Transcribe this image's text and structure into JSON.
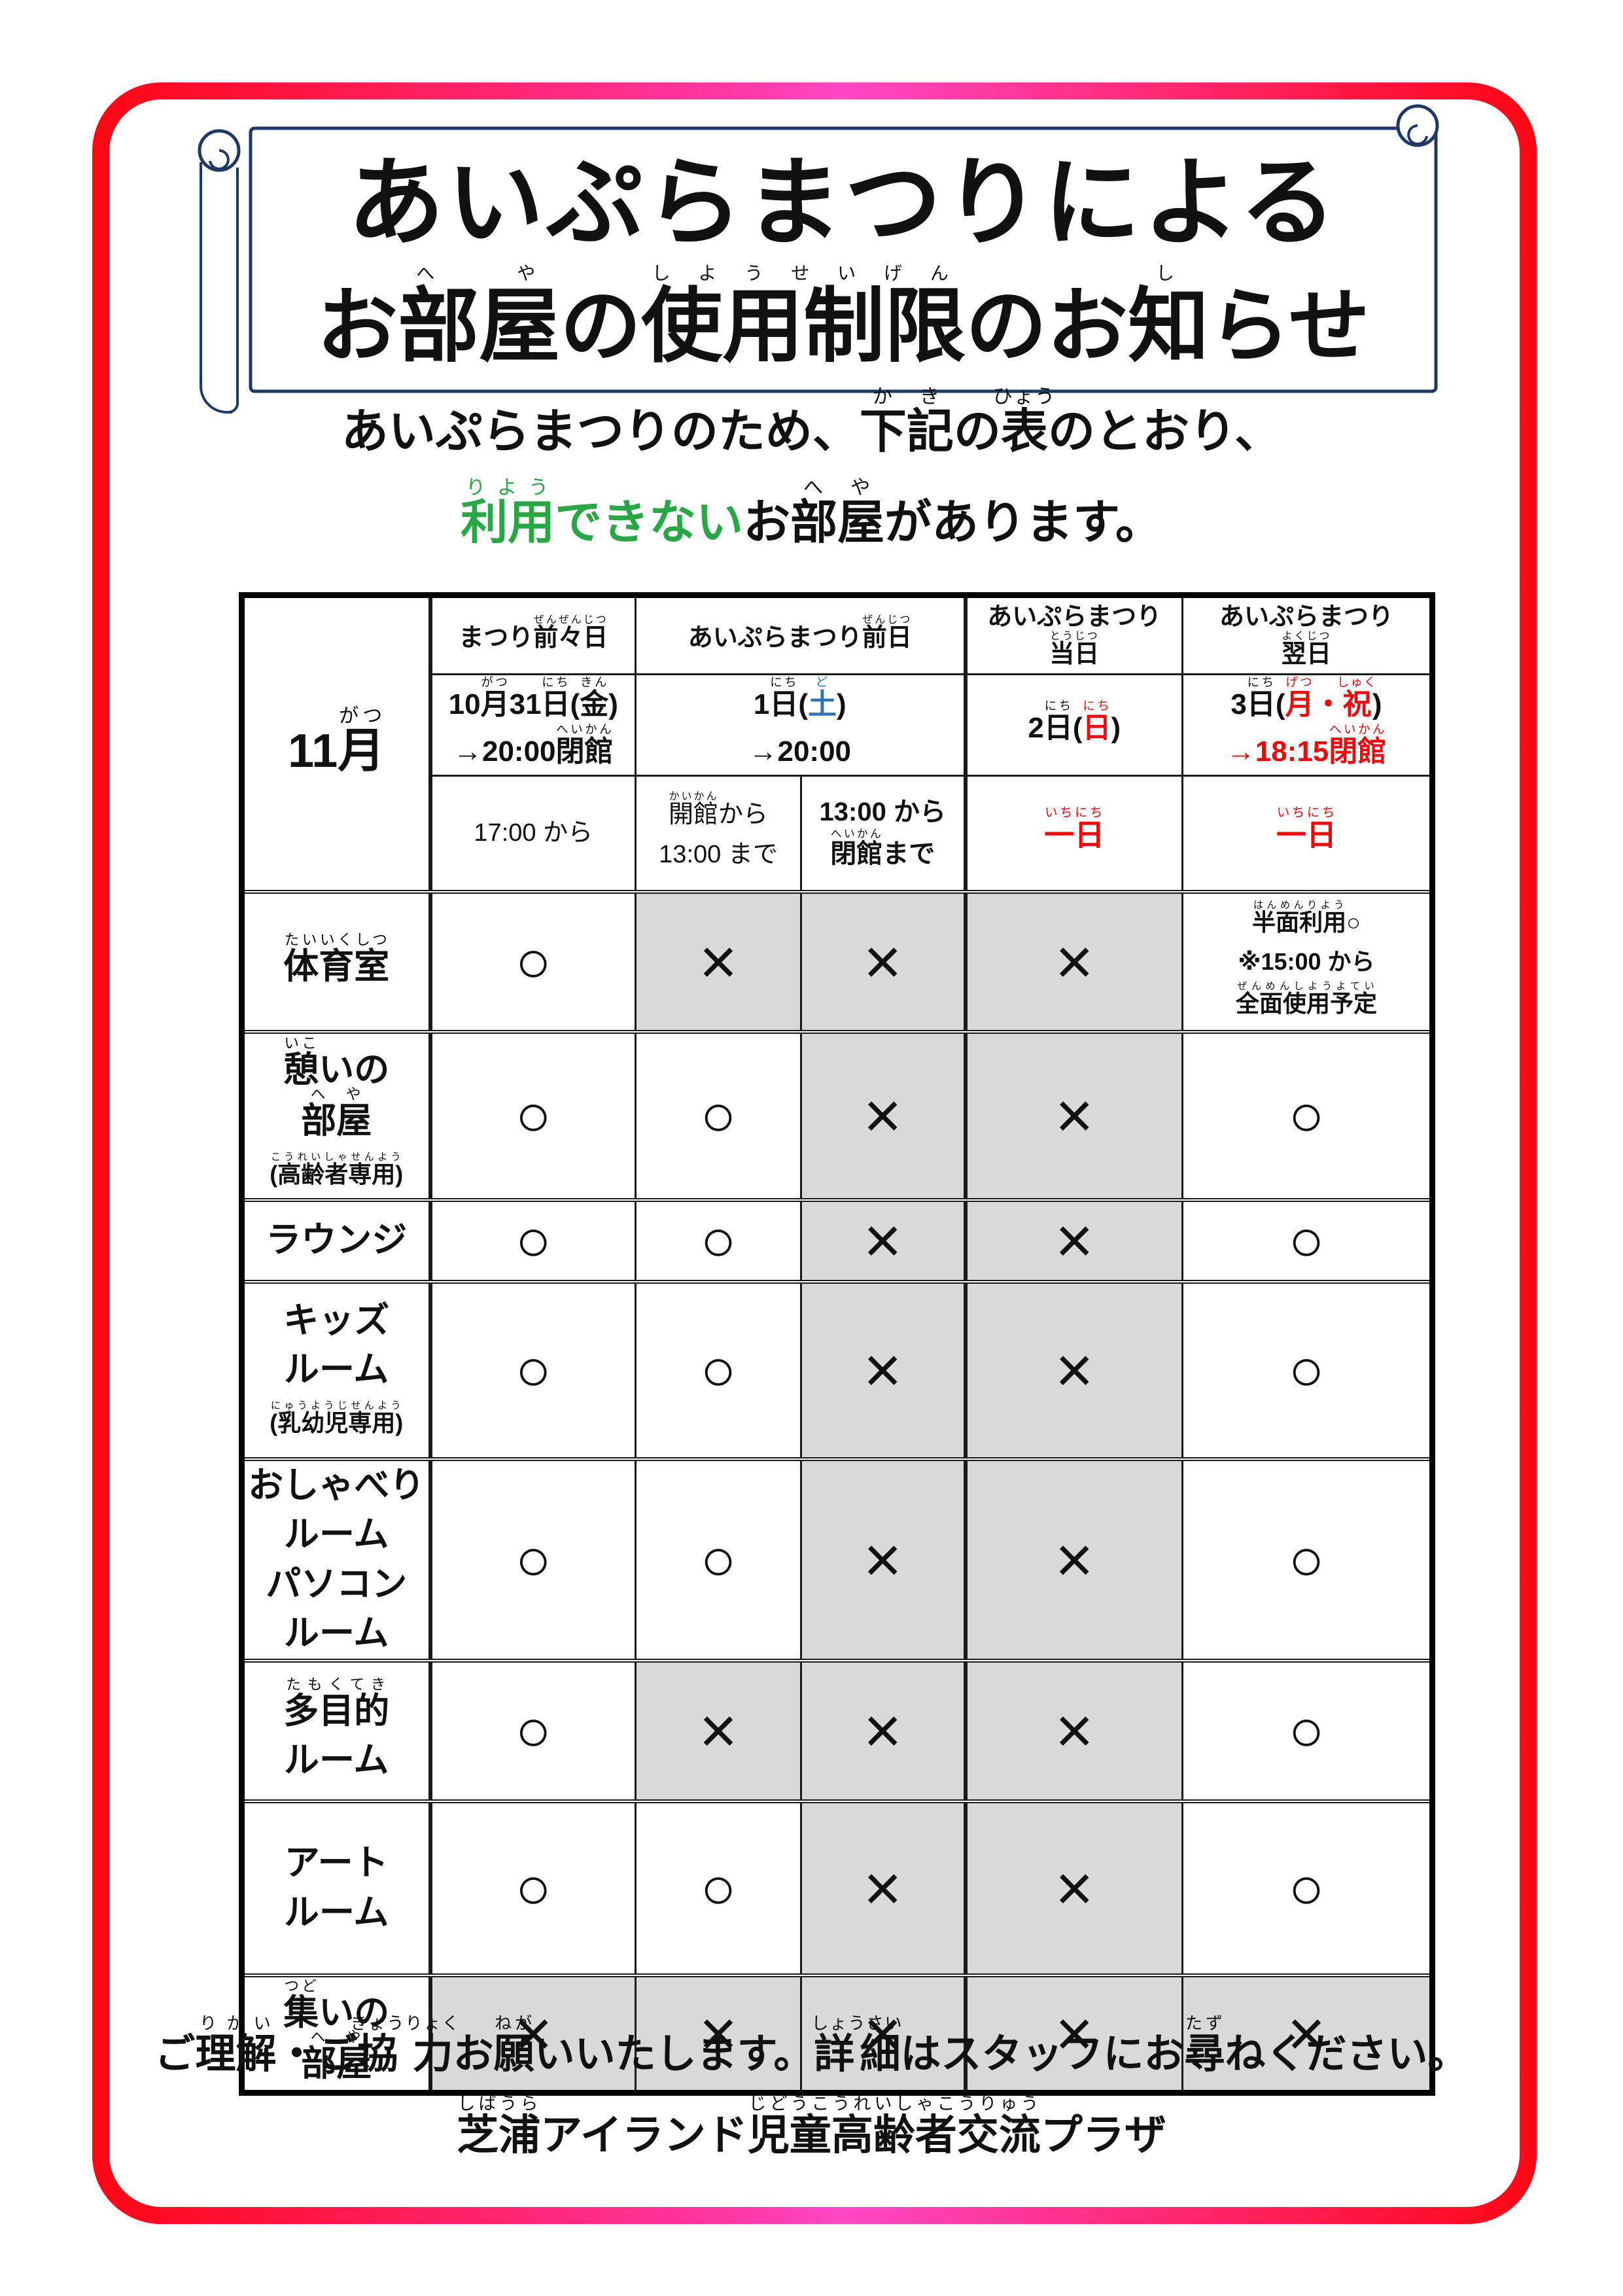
{
  "colors": {
    "frame_red": "#ff0613",
    "frame_pink": "#ff47c6",
    "scroll_outline_navy": "#1f3864",
    "highlight_green": "#28a745",
    "saturday_blue": "#2e75b6",
    "holiday_red": "#ee0a0a",
    "closed_cell_gray": "#d9d9d9"
  },
  "banner": {
    "title_line1": "あいぷらまつりによる",
    "title_line2": [
      "お",
      {
        "t": "部屋",
        "r": "へや"
      },
      "の",
      {
        "t": "使用制限",
        "r": "しようせいげん"
      },
      "のお",
      {
        "t": "知",
        "r": "し"
      },
      "らせ"
    ]
  },
  "intro": {
    "line1": [
      "あいぷらまつりのため、",
      {
        "t": "下記",
        "r": "かき"
      },
      "の",
      {
        "t": "表",
        "r": "ひょう"
      },
      "のとおり、"
    ],
    "line2": [
      {
        "t": "利用",
        "r": "りよう",
        "c": "green"
      },
      {
        "t": "できない",
        "c": "green"
      },
      "お",
      {
        "t": "部屋",
        "r": "へや"
      },
      "があります。"
    ]
  },
  "table": {
    "month": [
      "11",
      {
        "t": "月",
        "r": "がつ"
      }
    ],
    "marks": {
      "open": "○",
      "closed": "×"
    },
    "groups": [
      [
        "まつり",
        {
          "t": "前々日",
          "r": "ぜんぜんじつ"
        }
      ],
      [
        "あいぷらまつり",
        {
          "t": "前日",
          "r": "ぜんじつ"
        }
      ],
      [
        "あいぷらまつり",
        {
          "br": true
        },
        {
          "t": "当日",
          "r": "とうじつ"
        }
      ],
      [
        "あいぷらまつり",
        {
          "br": true
        },
        {
          "t": "翌日",
          "r": "よくじつ"
        }
      ]
    ],
    "dates": [
      [
        "10",
        {
          "t": "月",
          "r": "がつ"
        },
        "31",
        {
          "t": "日",
          "r": "にち"
        },
        "(",
        {
          "t": "金",
          "r": "きん"
        },
        ")",
        {
          "br": true
        },
        "→20:00",
        {
          "t": "閉館",
          "r": "へいかん"
        }
      ],
      [
        "1",
        {
          "t": "日",
          "r": "にち"
        },
        "(",
        {
          "t": "土",
          "r": "ど",
          "c": "blue"
        },
        ")",
        {
          "br": true
        },
        "→20:00"
      ],
      [
        "2",
        {
          "t": "日",
          "r": "にち"
        },
        "(",
        {
          "t": "日",
          "r": "にち",
          "c": "red"
        },
        ")"
      ],
      [
        "3",
        {
          "t": "日",
          "r": "にち"
        },
        "(",
        {
          "t": "月",
          "r": "げつ",
          "c": "red"
        },
        {
          "t": "・",
          "c": "red"
        },
        {
          "t": "祝",
          "r": "しゅく",
          "c": "red"
        },
        ")",
        {
          "br": true
        },
        {
          "t": "→18:15",
          "c": "red"
        },
        {
          "t": "閉館",
          "r": "へいかん",
          "c": "red"
        }
      ]
    ],
    "times": [
      [
        "17:00 から"
      ],
      [
        {
          "t": "開館",
          "r": "かいかん"
        },
        "から",
        {
          "br": true
        },
        "13:00 まで"
      ],
      [
        "13:00 から",
        {
          "br": true
        },
        {
          "t": "閉館",
          "r": "へいかん"
        },
        "まで"
      ],
      [
        {
          "t": "一日",
          "r": "いちにち",
          "c": "red"
        }
      ],
      [
        {
          "t": "一日",
          "r": "いちにち",
          "c": "red"
        }
      ]
    ],
    "rows": [
      {
        "room": [
          {
            "t": "体育室",
            "r": "たいいくしつ"
          }
        ],
        "cells": [
          {
            "mark": "○"
          },
          {
            "mark": "×",
            "gray": true
          },
          {
            "mark": "×",
            "gray": true
          },
          {
            "mark": "×",
            "gray": true
          },
          {
            "lines": [
              [
                {
                  "t": "半面利用",
                  "r": "はんめんりよう"
                },
                "○"
              ],
              [
                "※15:00 から"
              ],
              [
                {
                  "t": "全面使用予定",
                  "r": "ぜんめんしようよてい"
                }
              ]
            ]
          }
        ]
      },
      {
        "room": [
          {
            "t": "憩",
            "r": "いこ"
          },
          "いの",
          {
            "br": true
          },
          {
            "t": "部屋",
            "r": "へや"
          },
          {
            "br": true
          },
          {
            "t": "(高齢者専用)",
            "r": "こうれいしゃせんよう",
            "c": "small"
          }
        ],
        "cells": [
          {
            "mark": "○"
          },
          {
            "mark": "○"
          },
          {
            "mark": "×",
            "gray": true
          },
          {
            "mark": "×",
            "gray": true
          },
          {
            "mark": "○"
          }
        ]
      },
      {
        "room": [
          "ラウンジ"
        ],
        "cells": [
          {
            "mark": "○"
          },
          {
            "mark": "○"
          },
          {
            "mark": "×",
            "gray": true
          },
          {
            "mark": "×",
            "gray": true
          },
          {
            "mark": "○"
          }
        ]
      },
      {
        "room": [
          "キッズ",
          {
            "br": true
          },
          "ルーム",
          {
            "br": true
          },
          {
            "t": "(乳幼児専用)",
            "r": "にゅうようじせんよう",
            "c": "small"
          }
        ],
        "cells": [
          {
            "mark": "○"
          },
          {
            "mark": "○"
          },
          {
            "mark": "×",
            "gray": true
          },
          {
            "mark": "×",
            "gray": true
          },
          {
            "mark": "○"
          }
        ]
      },
      {
        "size": "mid",
        "room": [
          "おしゃべり",
          {
            "br": true
          },
          "ルーム",
          {
            "br": true
          },
          "パソコン",
          {
            "br": true
          },
          "ルーム"
        ],
        "cells": [
          {
            "mark": "○"
          },
          {
            "mark": "○"
          },
          {
            "mark": "×",
            "gray": true
          },
          {
            "mark": "×",
            "gray": true
          },
          {
            "mark": "○"
          }
        ]
      },
      {
        "room": [
          {
            "t": "多目的",
            "r": "たもくてき"
          },
          {
            "br": true
          },
          "ルーム"
        ],
        "cells": [
          {
            "mark": "○"
          },
          {
            "mark": "×",
            "gray": true
          },
          {
            "mark": "×",
            "gray": true
          },
          {
            "mark": "×",
            "gray": true
          },
          {
            "mark": "○"
          }
        ]
      },
      {
        "room": [
          "アート",
          {
            "br": true
          },
          "ルーム"
        ],
        "cells": [
          {
            "mark": "○"
          },
          {
            "mark": "○"
          },
          {
            "mark": "×",
            "gray": true
          },
          {
            "mark": "×",
            "gray": true
          },
          {
            "mark": "○"
          }
        ]
      },
      {
        "room": [
          {
            "t": "集",
            "r": "つど"
          },
          "いの",
          {
            "br": true
          },
          {
            "t": "部屋",
            "r": "へや"
          }
        ],
        "cells": [
          {
            "mark": "×",
            "gray": true
          },
          {
            "mark": "×",
            "gray": true
          },
          {
            "mark": "×",
            "gray": true
          },
          {
            "mark": "×",
            "gray": true
          },
          {
            "mark": "×",
            "gray": true
          }
        ]
      }
    ]
  },
  "footer": {
    "line1": [
      "ご",
      {
        "t": "理解",
        "r": "りかい"
      },
      "・ご",
      {
        "t": "協力",
        "r": "きょうりょく"
      },
      "お",
      {
        "t": "願",
        "r": "ねが"
      },
      "いいたします。",
      {
        "t": "詳細",
        "r": "しょうさい"
      },
      "はスタッフにお",
      {
        "t": "尋",
        "r": "たず"
      },
      "ねください。"
    ],
    "line2": [
      {
        "t": "芝浦",
        "r": "しばうら"
      },
      "アイランド",
      {
        "t": "児童高齢者交流",
        "r": "じどうこうれいしゃこうりゅう"
      },
      "プラザ"
    ]
  }
}
